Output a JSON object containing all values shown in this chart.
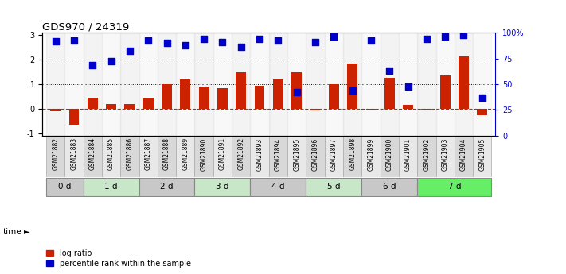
{
  "title": "GDS970 / 24319",
  "samples": [
    "GSM21882",
    "GSM21883",
    "GSM21884",
    "GSM21885",
    "GSM21886",
    "GSM21887",
    "GSM21888",
    "GSM21889",
    "GSM21890",
    "GSM21891",
    "GSM21892",
    "GSM21893",
    "GSM21894",
    "GSM21895",
    "GSM21896",
    "GSM21897",
    "GSM21898",
    "GSM21899",
    "GSM21900",
    "GSM21901",
    "GSM21902",
    "GSM21903",
    "GSM21904",
    "GSM21905"
  ],
  "log_ratio": [
    -0.1,
    -0.65,
    0.45,
    0.2,
    0.2,
    0.42,
    1.0,
    1.2,
    0.88,
    0.85,
    1.5,
    0.95,
    1.2,
    1.5,
    -0.08,
    1.0,
    1.85,
    -0.03,
    1.25,
    0.17,
    -0.05,
    1.35,
    2.15,
    -0.25
  ],
  "percentile_rank": [
    2.75,
    2.78,
    1.78,
    1.95,
    2.38,
    2.78,
    2.68,
    2.6,
    2.85,
    2.72,
    2.52,
    2.85,
    2.78,
    0.68,
    2.72,
    2.95,
    0.75,
    2.78,
    1.55,
    0.92,
    2.85,
    2.95,
    3.0,
    0.45
  ],
  "time_groups": [
    {
      "label": "0 d",
      "start": 0,
      "end": 2,
      "color": "#c8c8c8"
    },
    {
      "label": "1 d",
      "start": 2,
      "end": 5,
      "color": "#c8e6c8"
    },
    {
      "label": "2 d",
      "start": 5,
      "end": 8,
      "color": "#c8c8c8"
    },
    {
      "label": "3 d",
      "start": 8,
      "end": 11,
      "color": "#c8e6c8"
    },
    {
      "label": "4 d",
      "start": 11,
      "end": 14,
      "color": "#c8c8c8"
    },
    {
      "label": "5 d",
      "start": 14,
      "end": 17,
      "color": "#c8e6c8"
    },
    {
      "label": "6 d",
      "start": 17,
      "end": 20,
      "color": "#c8c8c8"
    },
    {
      "label": "7 d",
      "start": 20,
      "end": 24,
      "color": "#66ee66"
    }
  ],
  "bar_color": "#cc2200",
  "dot_color": "#0000cc",
  "ylim_left": [
    -1.1,
    3.1
  ],
  "ylim_right": [
    0,
    100
  ],
  "yticks_left": [
    -1,
    0,
    1,
    2,
    3
  ],
  "yticks_right": [
    0,
    25,
    50,
    75,
    100
  ],
  "ytick_right_labels": [
    "0",
    "25",
    "50",
    "75",
    "100%"
  ],
  "hlines_dotted": [
    1,
    2
  ],
  "hline_dashed": 0,
  "legend_log_ratio": "log ratio",
  "legend_percentile": "percentile rank within the sample",
  "bar_width": 0.55,
  "dot_size": 28,
  "sample_col_color_even": "#d8d8d8",
  "sample_col_color_odd": "#e8e8e8"
}
